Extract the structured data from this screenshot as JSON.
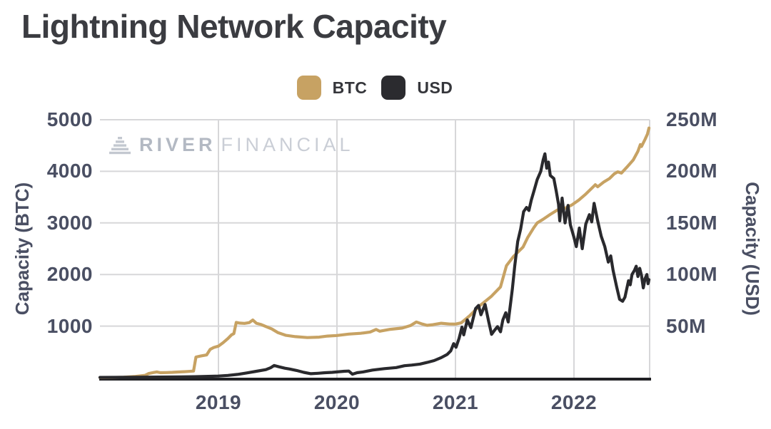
{
  "page": {
    "title": "Lightning Network Capacity"
  },
  "watermark": {
    "brand_bold": "RIVER",
    "brand_light": "FINANCIAL"
  },
  "legend": {
    "items": [
      {
        "label": "BTC",
        "color": "#C7A263"
      },
      {
        "label": "USD",
        "color": "#2B2B2F"
      }
    ]
  },
  "colors": {
    "btc_line": "#C7A263",
    "usd_line": "#29292D",
    "gridline": "#D7D7D9",
    "axis_line": "#202024",
    "tick_text": "#4A4F63",
    "title_text": "#3B3C41",
    "watermark_bold": "#B3B9C3",
    "watermark_light": "#CACED6"
  },
  "chart_data": {
    "type": "line",
    "title": "Lightning Network Capacity",
    "grid": true,
    "legend_position": "top-center",
    "x_axis": {
      "unit": "year (decimal)",
      "range": [
        2018.0,
        2022.64
      ],
      "ticks": [
        2019,
        2020,
        2021,
        2022
      ],
      "labels": [
        "2019",
        "2020",
        "2021",
        "2022"
      ]
    },
    "y_axis_left": {
      "label": "Capacity (BTC)",
      "unit": "BTC",
      "range": [
        0,
        5000
      ],
      "ticks": [
        1000,
        2000,
        3000,
        4000,
        5000
      ],
      "tick_labels": [
        "1000",
        "2000",
        "3000",
        "4000",
        "5000"
      ]
    },
    "y_axis_right": {
      "label": "Capacity (USD)",
      "unit": "USD millions",
      "range": [
        0,
        250
      ],
      "ticks": [
        50,
        100,
        150,
        200,
        250
      ],
      "tick_labels": [
        "50M",
        "100M",
        "150M",
        "200M",
        "250M"
      ]
    },
    "series": [
      {
        "name": "BTC",
        "axis": "left",
        "color": "#C7A263",
        "points": [
          [
            2018.0,
            2
          ],
          [
            2018.1,
            4
          ],
          [
            2018.2,
            10
          ],
          [
            2018.3,
            25
          ],
          [
            2018.38,
            45
          ],
          [
            2018.41,
            80
          ],
          [
            2018.45,
            100
          ],
          [
            2018.48,
            112
          ],
          [
            2018.51,
            97
          ],
          [
            2018.56,
            100
          ],
          [
            2018.61,
            104
          ],
          [
            2018.66,
            110
          ],
          [
            2018.71,
            116
          ],
          [
            2018.75,
            122
          ],
          [
            2018.79,
            128
          ],
          [
            2018.81,
            400
          ],
          [
            2018.85,
            420
          ],
          [
            2018.9,
            440
          ],
          [
            2018.93,
            550
          ],
          [
            2018.96,
            585
          ],
          [
            2019.0,
            612
          ],
          [
            2019.04,
            680
          ],
          [
            2019.08,
            760
          ],
          [
            2019.11,
            830
          ],
          [
            2019.13,
            855
          ],
          [
            2019.15,
            1070
          ],
          [
            2019.18,
            1058
          ],
          [
            2019.22,
            1052
          ],
          [
            2019.26,
            1068
          ],
          [
            2019.29,
            1118
          ],
          [
            2019.32,
            1055
          ],
          [
            2019.36,
            1030
          ],
          [
            2019.4,
            992
          ],
          [
            2019.45,
            945
          ],
          [
            2019.5,
            875
          ],
          [
            2019.57,
            820
          ],
          [
            2019.65,
            795
          ],
          [
            2019.75,
            778
          ],
          [
            2019.85,
            786
          ],
          [
            2019.92,
            806
          ],
          [
            2020.0,
            818
          ],
          [
            2020.1,
            845
          ],
          [
            2020.2,
            860
          ],
          [
            2020.28,
            885
          ],
          [
            2020.33,
            935
          ],
          [
            2020.36,
            900
          ],
          [
            2020.45,
            938
          ],
          [
            2020.55,
            962
          ],
          [
            2020.62,
            1010
          ],
          [
            2020.67,
            1080
          ],
          [
            2020.72,
            1040
          ],
          [
            2020.76,
            1015
          ],
          [
            2020.81,
            1028
          ],
          [
            2020.88,
            1055
          ],
          [
            2020.95,
            1040
          ],
          [
            2021.0,
            1038
          ],
          [
            2021.05,
            1065
          ],
          [
            2021.12,
            1200
          ],
          [
            2021.2,
            1385
          ],
          [
            2021.3,
            1570
          ],
          [
            2021.38,
            1760
          ],
          [
            2021.43,
            2170
          ],
          [
            2021.49,
            2350
          ],
          [
            2021.57,
            2530
          ],
          [
            2021.61,
            2720
          ],
          [
            2021.66,
            2905
          ],
          [
            2021.69,
            3000
          ],
          [
            2021.74,
            3070
          ],
          [
            2021.8,
            3165
          ],
          [
            2021.86,
            3250
          ],
          [
            2021.92,
            3280
          ],
          [
            2021.98,
            3345
          ],
          [
            2022.04,
            3440
          ],
          [
            2022.1,
            3560
          ],
          [
            2022.16,
            3695
          ],
          [
            2022.18,
            3740
          ],
          [
            2022.2,
            3700
          ],
          [
            2022.25,
            3790
          ],
          [
            2022.3,
            3860
          ],
          [
            2022.34,
            3950
          ],
          [
            2022.37,
            3990
          ],
          [
            2022.4,
            3965
          ],
          [
            2022.45,
            4090
          ],
          [
            2022.5,
            4220
          ],
          [
            2022.54,
            4390
          ],
          [
            2022.56,
            4520
          ],
          [
            2022.57,
            4480
          ],
          [
            2022.6,
            4620
          ],
          [
            2022.62,
            4720
          ],
          [
            2022.633,
            4840
          ]
        ]
      },
      {
        "name": "USD",
        "axis": "right",
        "color": "#29292D",
        "points": [
          [
            2018.0,
            0.3
          ],
          [
            2018.3,
            0.4
          ],
          [
            2018.6,
            0.7
          ],
          [
            2018.8,
            1.0
          ],
          [
            2019.0,
            1.6
          ],
          [
            2019.08,
            2.2
          ],
          [
            2019.16,
            3.2
          ],
          [
            2019.24,
            4.6
          ],
          [
            2019.32,
            6.2
          ],
          [
            2019.4,
            7.8
          ],
          [
            2019.44,
            9.6
          ],
          [
            2019.47,
            11.8
          ],
          [
            2019.51,
            10.6
          ],
          [
            2019.56,
            9.2
          ],
          [
            2019.6,
            8.4
          ],
          [
            2019.66,
            7.0
          ],
          [
            2019.72,
            5.2
          ],
          [
            2019.78,
            3.9
          ],
          [
            2019.84,
            4.3
          ],
          [
            2019.9,
            4.8
          ],
          [
            2019.96,
            5.2
          ],
          [
            2020.0,
            5.6
          ],
          [
            2020.06,
            6.2
          ],
          [
            2020.1,
            6.4
          ],
          [
            2020.13,
            3.4
          ],
          [
            2020.17,
            4.8
          ],
          [
            2020.22,
            5.6
          ],
          [
            2020.3,
            7.4
          ],
          [
            2020.4,
            8.8
          ],
          [
            2020.5,
            9.8
          ],
          [
            2020.57,
            11.6
          ],
          [
            2020.63,
            12.2
          ],
          [
            2020.7,
            13.2
          ],
          [
            2020.76,
            14.8
          ],
          [
            2020.82,
            16.6
          ],
          [
            2020.88,
            19.5
          ],
          [
            2020.93,
            22.5
          ],
          [
            2020.96,
            26.0
          ],
          [
            2020.985,
            33.0
          ],
          [
            2021.005,
            29.5
          ],
          [
            2021.03,
            38.0
          ],
          [
            2021.055,
            49.0
          ],
          [
            2021.07,
            41.5
          ],
          [
            2021.1,
            56.0
          ],
          [
            2021.13,
            48.5
          ],
          [
            2021.17,
            67.0
          ],
          [
            2021.195,
            70.0
          ],
          [
            2021.215,
            61.0
          ],
          [
            2021.25,
            71.0
          ],
          [
            2021.28,
            54.5
          ],
          [
            2021.305,
            42.0
          ],
          [
            2021.33,
            46.0
          ],
          [
            2021.355,
            49.5
          ],
          [
            2021.38,
            44.5
          ],
          [
            2021.4,
            56.0
          ],
          [
            2021.425,
            63.0
          ],
          [
            2021.445,
            54.0
          ],
          [
            2021.465,
            72.0
          ],
          [
            2021.48,
            86.0
          ],
          [
            2021.5,
            108
          ],
          [
            2021.525,
            132
          ],
          [
            2021.55,
            144
          ],
          [
            2021.575,
            161
          ],
          [
            2021.6,
            165
          ],
          [
            2021.62,
            162
          ],
          [
            2021.64,
            172
          ],
          [
            2021.665,
            182
          ],
          [
            2021.69,
            192
          ],
          [
            2021.72,
            200
          ],
          [
            2021.74,
            211
          ],
          [
            2021.755,
            217
          ],
          [
            2021.77,
            203
          ],
          [
            2021.785,
            209
          ],
          [
            2021.8,
            196
          ],
          [
            2021.83,
            193
          ],
          [
            2021.85,
            181
          ],
          [
            2021.87,
            168
          ],
          [
            2021.88,
            152
          ],
          [
            2021.9,
            174
          ],
          [
            2021.925,
            150
          ],
          [
            2021.95,
            167
          ],
          [
            2021.97,
            148
          ],
          [
            2022.0,
            136
          ],
          [
            2022.02,
            127
          ],
          [
            2022.045,
            145
          ],
          [
            2022.07,
            125
          ],
          [
            2022.1,
            149
          ],
          [
            2022.13,
            158
          ],
          [
            2022.15,
            151
          ],
          [
            2022.17,
            169
          ],
          [
            2022.2,
            152
          ],
          [
            2022.23,
            137
          ],
          [
            2022.26,
            127
          ],
          [
            2022.29,
            112
          ],
          [
            2022.31,
            118
          ],
          [
            2022.33,
            104
          ],
          [
            2022.36,
            88
          ],
          [
            2022.385,
            76
          ],
          [
            2022.41,
            74
          ],
          [
            2022.43,
            78
          ],
          [
            2022.46,
            94
          ],
          [
            2022.475,
            90
          ],
          [
            2022.49,
            100
          ],
          [
            2022.51,
            104
          ],
          [
            2022.525,
            108
          ],
          [
            2022.54,
            98
          ],
          [
            2022.555,
            106
          ],
          [
            2022.57,
            99
          ],
          [
            2022.585,
            87
          ],
          [
            2022.6,
            96
          ],
          [
            2022.615,
            100
          ],
          [
            2022.625,
            91
          ],
          [
            2022.633,
            95
          ]
        ]
      }
    ]
  }
}
